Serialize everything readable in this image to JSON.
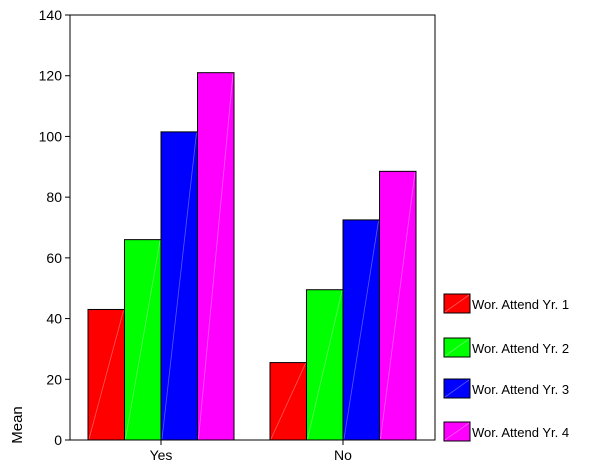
{
  "chart_data": {
    "type": "bar",
    "categories": [
      "Yes",
      "No"
    ],
    "series": [
      {
        "name": "Wor. Attend Yr. 1",
        "color": "#ff0000",
        "values": [
          43,
          25.5
        ]
      },
      {
        "name": "Wor. Attend Yr. 2",
        "color": "#00ff00",
        "values": [
          66,
          49.5
        ]
      },
      {
        "name": "Wor. Attend Yr. 3",
        "color": "#0000ff",
        "values": [
          101.5,
          72.5
        ]
      },
      {
        "name": "Wor. Attend Yr. 4",
        "color": "#ff00ff",
        "values": [
          121,
          88.5
        ]
      }
    ],
    "ylabel": "Mean",
    "xlabel": "",
    "title": "",
    "ylim": [
      0,
      140
    ],
    "yticks": [
      0,
      20,
      40,
      60,
      80,
      100,
      120,
      140
    ],
    "grid": false,
    "legend_position": "right"
  }
}
